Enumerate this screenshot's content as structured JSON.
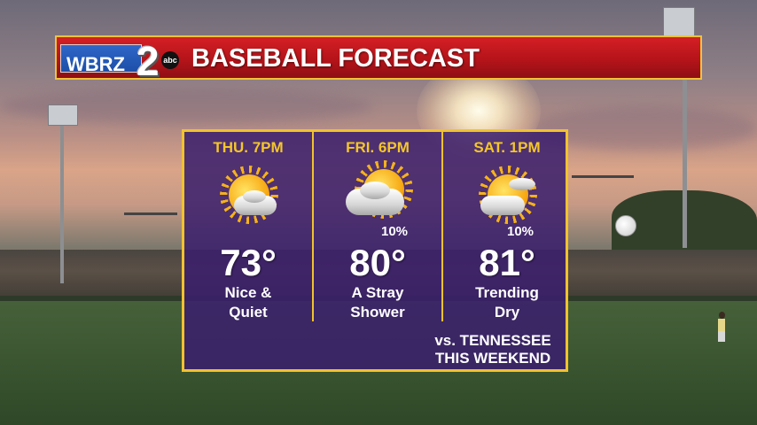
{
  "header": {
    "logo": {
      "station": "WBRZ",
      "channel": "2",
      "network": "abc"
    },
    "title": "BASEBALL FORECAST"
  },
  "forecast": [
    {
      "day": "THU.  7PM",
      "icon": "sun-behind-cloud-icon",
      "precip": "",
      "temp": "73°",
      "desc_line1": "Nice &",
      "desc_line2": "Quiet"
    },
    {
      "day": "FRI. 6PM",
      "icon": "cloud-with-sun-icon",
      "precip": "10%",
      "temp": "80°",
      "desc_line1": "A Stray",
      "desc_line2": "Shower"
    },
    {
      "day": "SAT. 1PM",
      "icon": "sun-behind-cloud-icon",
      "precip": "10%",
      "temp": "81°",
      "desc_line1": "Trending",
      "desc_line2": "Dry"
    }
  ],
  "note": {
    "line1": "vs. TENNESSEE",
    "line2": "THIS WEEKEND"
  },
  "colors": {
    "header_red": "#c0171d",
    "border_gold": "#f1c22e",
    "panel_purple": "#3a1e6c",
    "day_text_gold": "#f4c62a"
  }
}
